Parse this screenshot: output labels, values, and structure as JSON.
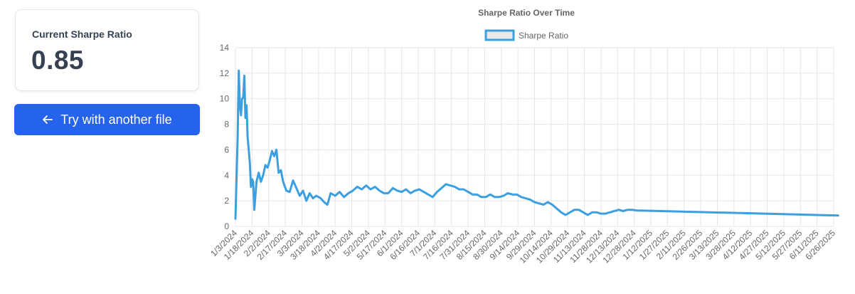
{
  "metric_card": {
    "label": "Current Sharpe Ratio",
    "value": "0.85"
  },
  "back_button": {
    "label": "Try with another file",
    "icon": "arrow-left-icon"
  },
  "colors": {
    "accent": "#2563eb",
    "series": "#3b9fe0",
    "legend_fill": "#e8e8e8"
  },
  "chart_data": {
    "type": "line",
    "title": "Sharpe Ratio Over Time",
    "xlabel": "",
    "ylabel": "",
    "ylim": [
      0,
      14
    ],
    "y_ticks": [
      0,
      2,
      4,
      6,
      8,
      10,
      12,
      14
    ],
    "x_tick_labels": [
      "1/3/2024",
      "1/18/2024",
      "2/2/2024",
      "2/17/2024",
      "3/3/2024",
      "3/18/2024",
      "4/2/2024",
      "4/17/2024",
      "5/2/2024",
      "5/17/2024",
      "6/1/2024",
      "6/16/2024",
      "7/1/2024",
      "7/16/2024",
      "7/31/2024",
      "8/15/2024",
      "8/30/2024",
      "9/14/2024",
      "9/29/2024",
      "10/14/2024",
      "10/29/2024",
      "11/13/2024",
      "11/28/2024",
      "12/13/2024",
      "12/28/2024",
      "1/12/2025",
      "1/27/2025",
      "2/11/2025",
      "2/26/2025",
      "3/13/2025",
      "3/28/2025",
      "4/12/2025",
      "4/27/2025",
      "5/12/2025",
      "5/27/2025",
      "6/11/2025",
      "6/26/2025"
    ],
    "grid": true,
    "legend_position": "top",
    "series": [
      {
        "name": "Sharpe Ratio",
        "points": [
          {
            "x": "1/3/2024",
            "y": 0.6
          },
          {
            "x": "1/5/2024",
            "y": 7.0
          },
          {
            "x": "1/6/2024",
            "y": 12.2
          },
          {
            "x": "1/7/2024",
            "y": 9.5
          },
          {
            "x": "1/8/2024",
            "y": 8.7
          },
          {
            "x": "1/9/2024",
            "y": 10.0
          },
          {
            "x": "1/10/2024",
            "y": 10.1
          },
          {
            "x": "1/11/2024",
            "y": 11.8
          },
          {
            "x": "1/12/2024",
            "y": 8.5
          },
          {
            "x": "1/13/2024",
            "y": 9.5
          },
          {
            "x": "1/14/2024",
            "y": 7.0
          },
          {
            "x": "1/15/2024",
            "y": 6.0
          },
          {
            "x": "1/16/2024",
            "y": 5.0
          },
          {
            "x": "1/17/2024",
            "y": 3.1
          },
          {
            "x": "1/18/2024",
            "y": 3.7
          },
          {
            "x": "1/19/2024",
            "y": 3.5
          },
          {
            "x": "1/20/2024",
            "y": 1.3
          },
          {
            "x": "1/22/2024",
            "y": 3.5
          },
          {
            "x": "1/24/2024",
            "y": 4.2
          },
          {
            "x": "1/26/2024",
            "y": 3.5
          },
          {
            "x": "1/28/2024",
            "y": 4.0
          },
          {
            "x": "1/30/2024",
            "y": 4.8
          },
          {
            "x": "2/1/2024",
            "y": 4.6
          },
          {
            "x": "2/3/2024",
            "y": 5.2
          },
          {
            "x": "2/5/2024",
            "y": 5.9
          },
          {
            "x": "2/7/2024",
            "y": 5.5
          },
          {
            "x": "2/9/2024",
            "y": 6.0
          },
          {
            "x": "2/11/2024",
            "y": 4.2
          },
          {
            "x": "2/13/2024",
            "y": 4.4
          },
          {
            "x": "2/15/2024",
            "y": 3.5
          },
          {
            "x": "2/18/2024",
            "y": 2.8
          },
          {
            "x": "2/21/2024",
            "y": 2.7
          },
          {
            "x": "2/24/2024",
            "y": 3.6
          },
          {
            "x": "2/27/2024",
            "y": 3.0
          },
          {
            "x": "3/1/2024",
            "y": 2.4
          },
          {
            "x": "3/4/2024",
            "y": 2.8
          },
          {
            "x": "3/7/2024",
            "y": 2.0
          },
          {
            "x": "3/10/2024",
            "y": 2.6
          },
          {
            "x": "3/13/2024",
            "y": 2.2
          },
          {
            "x": "3/16/2024",
            "y": 2.4
          },
          {
            "x": "3/20/2024",
            "y": 2.2
          },
          {
            "x": "3/23/2024",
            "y": 1.9
          },
          {
            "x": "3/26/2024",
            "y": 1.7
          },
          {
            "x": "3/29/2024",
            "y": 2.6
          },
          {
            "x": "4/2/2024",
            "y": 2.4
          },
          {
            "x": "4/6/2024",
            "y": 2.7
          },
          {
            "x": "4/10/2024",
            "y": 2.3
          },
          {
            "x": "4/14/2024",
            "y": 2.6
          },
          {
            "x": "4/18/2024",
            "y": 2.8
          },
          {
            "x": "4/22/2024",
            "y": 3.1
          },
          {
            "x": "4/26/2024",
            "y": 2.9
          },
          {
            "x": "4/30/2024",
            "y": 3.2
          },
          {
            "x": "5/4/2024",
            "y": 2.9
          },
          {
            "x": "5/8/2024",
            "y": 3.1
          },
          {
            "x": "5/12/2024",
            "y": 2.8
          },
          {
            "x": "5/16/2024",
            "y": 2.6
          },
          {
            "x": "5/20/2024",
            "y": 2.6
          },
          {
            "x": "5/24/2024",
            "y": 3.0
          },
          {
            "x": "5/28/2024",
            "y": 2.8
          },
          {
            "x": "6/1/2024",
            "y": 2.7
          },
          {
            "x": "6/5/2024",
            "y": 2.9
          },
          {
            "x": "6/9/2024",
            "y": 2.6
          },
          {
            "x": "6/13/2024",
            "y": 2.8
          },
          {
            "x": "6/17/2024",
            "y": 2.9
          },
          {
            "x": "6/21/2024",
            "y": 2.7
          },
          {
            "x": "6/25/2024",
            "y": 2.5
          },
          {
            "x": "6/29/2024",
            "y": 2.3
          },
          {
            "x": "7/3/2024",
            "y": 2.7
          },
          {
            "x": "7/7/2024",
            "y": 3.0
          },
          {
            "x": "7/11/2024",
            "y": 3.3
          },
          {
            "x": "7/15/2024",
            "y": 3.2
          },
          {
            "x": "7/19/2024",
            "y": 3.1
          },
          {
            "x": "7/23/2024",
            "y": 2.9
          },
          {
            "x": "7/27/2024",
            "y": 2.9
          },
          {
            "x": "7/31/2024",
            "y": 2.7
          },
          {
            "x": "8/4/2024",
            "y": 2.5
          },
          {
            "x": "8/8/2024",
            "y": 2.5
          },
          {
            "x": "8/12/2024",
            "y": 2.3
          },
          {
            "x": "8/16/2024",
            "y": 2.3
          },
          {
            "x": "8/20/2024",
            "y": 2.5
          },
          {
            "x": "8/24/2024",
            "y": 2.3
          },
          {
            "x": "8/28/2024",
            "y": 2.3
          },
          {
            "x": "9/1/2024",
            "y": 2.4
          },
          {
            "x": "9/5/2024",
            "y": 2.6
          },
          {
            "x": "9/9/2024",
            "y": 2.5
          },
          {
            "x": "9/13/2024",
            "y": 2.5
          },
          {
            "x": "9/17/2024",
            "y": 2.3
          },
          {
            "x": "9/21/2024",
            "y": 2.2
          },
          {
            "x": "9/25/2024",
            "y": 2.1
          },
          {
            "x": "9/29/2024",
            "y": 1.9
          },
          {
            "x": "10/3/2024",
            "y": 1.8
          },
          {
            "x": "10/7/2024",
            "y": 1.7
          },
          {
            "x": "10/11/2024",
            "y": 1.9
          },
          {
            "x": "10/15/2024",
            "y": 1.7
          },
          {
            "x": "10/19/2024",
            "y": 1.4
          },
          {
            "x": "10/23/2024",
            "y": 1.1
          },
          {
            "x": "10/27/2024",
            "y": 0.9
          },
          {
            "x": "10/31/2024",
            "y": 1.1
          },
          {
            "x": "11/4/2024",
            "y": 1.3
          },
          {
            "x": "11/8/2024",
            "y": 1.3
          },
          {
            "x": "11/12/2024",
            "y": 1.1
          },
          {
            "x": "11/16/2024",
            "y": 0.9
          },
          {
            "x": "11/20/2024",
            "y": 1.1
          },
          {
            "x": "11/24/2024",
            "y": 1.1
          },
          {
            "x": "11/28/2024",
            "y": 1.0
          },
          {
            "x": "12/2/2024",
            "y": 1.0
          },
          {
            "x": "12/6/2024",
            "y": 1.1
          },
          {
            "x": "12/10/2024",
            "y": 1.2
          },
          {
            "x": "12/14/2024",
            "y": 1.3
          },
          {
            "x": "12/18/2024",
            "y": 1.2
          },
          {
            "x": "12/22/2024",
            "y": 1.3
          },
          {
            "x": "12/26/2024",
            "y": 1.3
          },
          {
            "x": "12/30/2024",
            "y": 1.25
          },
          {
            "x": "6/30/2025",
            "y": 0.85
          }
        ]
      }
    ]
  }
}
